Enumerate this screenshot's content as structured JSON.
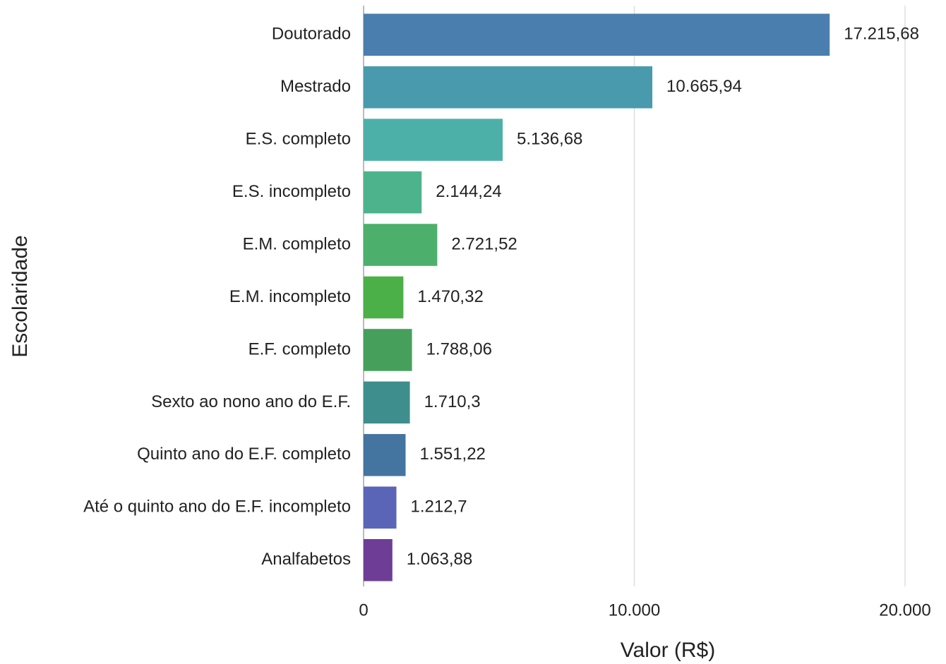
{
  "chart_data": {
    "type": "barh",
    "xlabel": "Valor (R$)",
    "ylabel": "Escolaridade",
    "categories": [
      "Doutorado",
      "Mestrado",
      "E.S. completo",
      "E.S. incompleto",
      "E.M. completo",
      "E.M. incompleto",
      "E.F. completo",
      "Sexto ao nono ano do E.F.",
      "Quinto ano do E.F. completo",
      "Até o quinto ano do E.F. incompleto",
      "Analfabetos"
    ],
    "values": [
      17215.68,
      10665.94,
      5136.68,
      2144.24,
      2721.52,
      1470.32,
      1788.06,
      1710.3,
      1551.22,
      1212.7,
      1063.88
    ],
    "value_labels": [
      "17.215,68",
      "10.665,94",
      "5.136,68",
      "2.144,24",
      "2.721,52",
      "1.470,32",
      "1.788,06",
      "1.710,3",
      "1.551,22",
      "1.212,7",
      "1.063,88"
    ],
    "colors": [
      "#4a7eae",
      "#4a9aae",
      "#4db0a8",
      "#4db38c",
      "#4cb06c",
      "#4cb048",
      "#46a05c",
      "#3f8e8e",
      "#4474a0",
      "#5b65b8",
      "#6e3d96"
    ],
    "xlim": [
      0,
      20000
    ],
    "xticks": [
      0,
      {
        "value": 10000,
        "label": "10.000"
      },
      {
        "value": 20000,
        "label": "20.000"
      }
    ],
    "grid": true
  }
}
